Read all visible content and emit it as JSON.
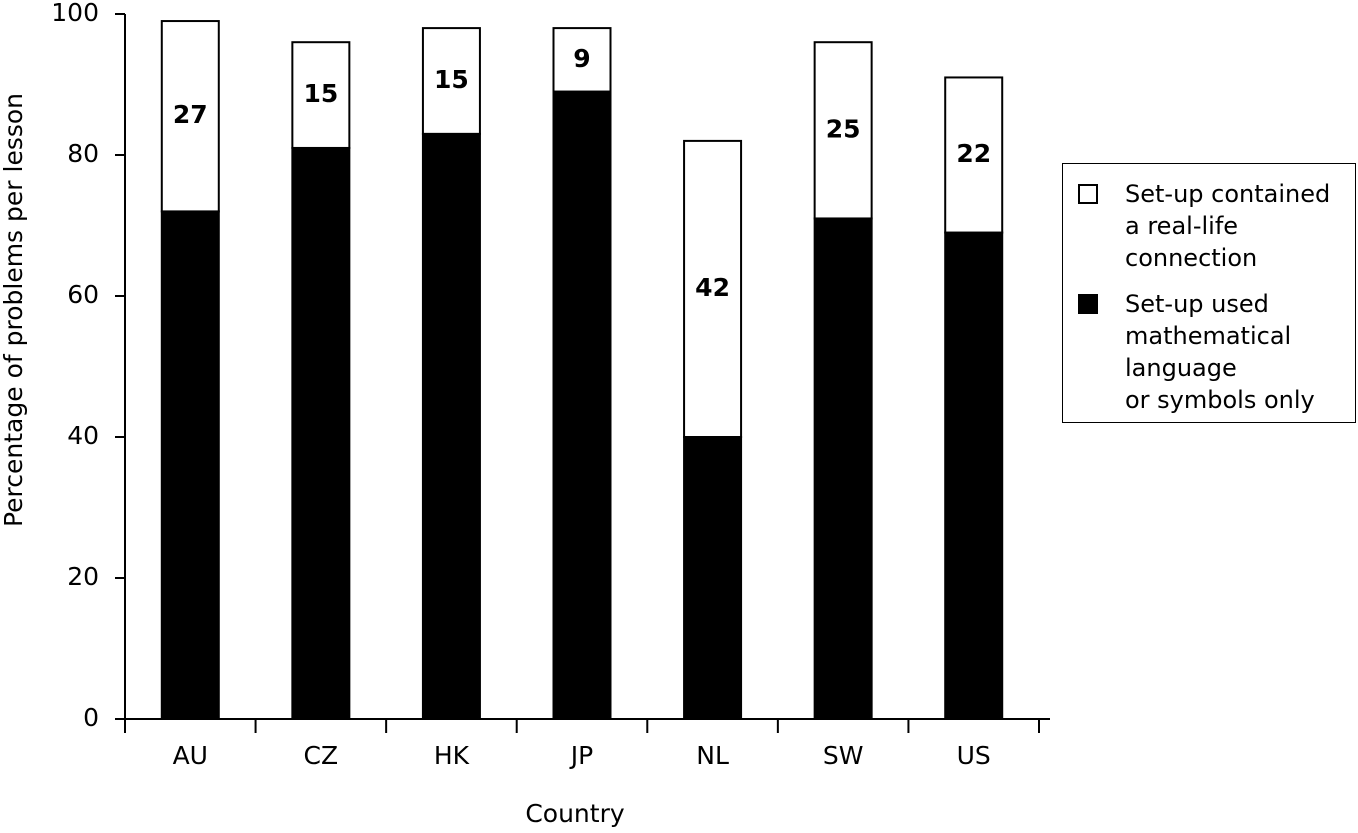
{
  "chart_data": {
    "type": "stacked_bar",
    "y_label": "Percentage of problems per lesson",
    "x_label": "Country",
    "categories": [
      "AU",
      "CZ",
      "HK",
      "JP",
      "NL",
      "SW",
      "US"
    ],
    "series": [
      {
        "name": "Set-up used\nmathematical\nlanguage\nor symbols only",
        "color": "#000000",
        "values": [
          72,
          81,
          83,
          89,
          40,
          71,
          69
        ]
      },
      {
        "name": "Set-up contained\na real-life\nconnection",
        "color": "#ffffff",
        "values": [
          27,
          15,
          15,
          9,
          42,
          25,
          22
        ]
      }
    ],
    "ylim": [
      0,
      100
    ],
    "yticks": [
      0,
      20,
      40,
      60,
      80,
      100
    ],
    "grid": false,
    "legend": "right"
  }
}
